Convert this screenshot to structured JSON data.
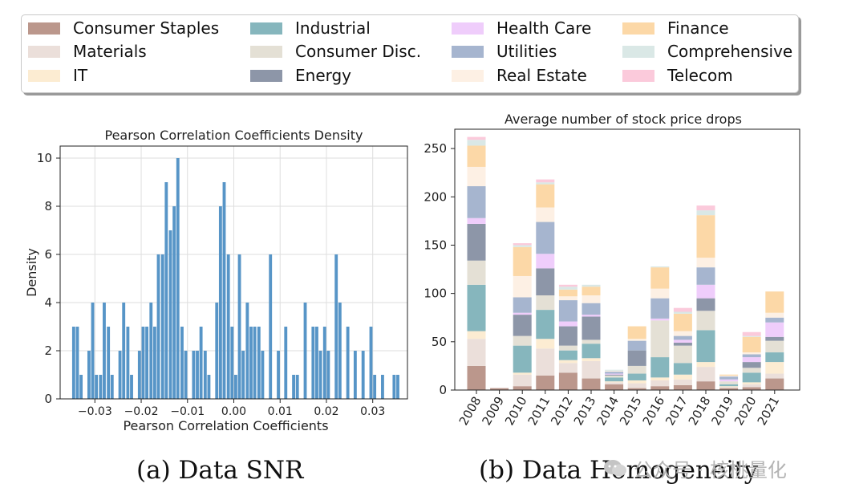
{
  "legend": {
    "items": [
      {
        "label": "Consumer Staples",
        "color": "#bb978c"
      },
      {
        "label": "Materials",
        "color": "#ebdfda"
      },
      {
        "label": "IT",
        "color": "#fcecd2"
      },
      {
        "label": "Industrial",
        "color": "#86b6bd"
      },
      {
        "label": "Consumer Disc.",
        "color": "#e4e0d5"
      },
      {
        "label": "Energy",
        "color": "#8d96a8"
      },
      {
        "label": "Health Care",
        "color": "#efcdfb"
      },
      {
        "label": "Utilities",
        "color": "#a6b5cf"
      },
      {
        "label": "Real Estate",
        "color": "#fdf0e4"
      },
      {
        "label": "Finance",
        "color": "#fcd8a7"
      },
      {
        "label": "Comprehensive",
        "color": "#dae8e6"
      },
      {
        "label": "Telecom",
        "color": "#fbcadb"
      }
    ]
  },
  "chart_data": [
    {
      "type": "bar",
      "title": "Pearson Correlation Coefficients Density",
      "xlabel": "Pearson Correlation Coefficients",
      "ylabel": "Density",
      "xlim": [
        -0.0375,
        0.0375
      ],
      "ylim": [
        0,
        10.5
      ],
      "bin_width": 0.00084,
      "bar_color": "#5795c7",
      "grid": true,
      "x_ticks": [
        -0.03,
        -0.02,
        -0.01,
        0.0,
        0.01,
        0.02,
        0.03
      ],
      "x_tick_labels": [
        "−0.03",
        "−0.02",
        "−0.01",
        "0.00",
        "0.01",
        "0.02",
        "0.03"
      ],
      "y_ticks": [
        0,
        2,
        4,
        6,
        8,
        10
      ],
      "y_tick_labels": [
        "0",
        "2",
        "4",
        "6",
        "8",
        "10"
      ],
      "bins": [
        {
          "x": -0.035,
          "value": 3
        },
        {
          "x": -0.0342,
          "value": 3
        },
        {
          "x": -0.0334,
          "value": 1
        },
        {
          "x": -0.0317,
          "value": 2
        },
        {
          "x": -0.0309,
          "value": 4
        },
        {
          "x": -0.0301,
          "value": 1
        },
        {
          "x": -0.0292,
          "value": 1
        },
        {
          "x": -0.0284,
          "value": 4
        },
        {
          "x": -0.0275,
          "value": 3
        },
        {
          "x": -0.0267,
          "value": 1
        },
        {
          "x": -0.025,
          "value": 2
        },
        {
          "x": -0.0242,
          "value": 4
        },
        {
          "x": -0.0233,
          "value": 3
        },
        {
          "x": -0.0225,
          "value": 1
        },
        {
          "x": -0.0208,
          "value": 2
        },
        {
          "x": -0.02,
          "value": 3
        },
        {
          "x": -0.0192,
          "value": 3
        },
        {
          "x": -0.0183,
          "value": 4
        },
        {
          "x": -0.0175,
          "value": 3
        },
        {
          "x": -0.0167,
          "value": 6
        },
        {
          "x": -0.0158,
          "value": 6
        },
        {
          "x": -0.015,
          "value": 9
        },
        {
          "x": -0.0141,
          "value": 7
        },
        {
          "x": -0.0133,
          "value": 8
        },
        {
          "x": -0.0125,
          "value": 10
        },
        {
          "x": -0.0116,
          "value": 3
        },
        {
          "x": -0.0108,
          "value": 2
        },
        {
          "x": -0.0091,
          "value": 2
        },
        {
          "x": -0.0083,
          "value": 2
        },
        {
          "x": -0.0075,
          "value": 3
        },
        {
          "x": -0.0066,
          "value": 2
        },
        {
          "x": -0.0058,
          "value": 1
        },
        {
          "x": -0.0041,
          "value": 4
        },
        {
          "x": -0.0033,
          "value": 8
        },
        {
          "x": -0.0025,
          "value": 9
        },
        {
          "x": -0.0016,
          "value": 6
        },
        {
          "x": -0.0008,
          "value": 3
        },
        {
          "x": 0.0,
          "value": 1
        },
        {
          "x": 0.0008,
          "value": 6
        },
        {
          "x": 0.0016,
          "value": 2
        },
        {
          "x": 0.0025,
          "value": 4
        },
        {
          "x": 0.0033,
          "value": 3
        },
        {
          "x": 0.0041,
          "value": 3
        },
        {
          "x": 0.005,
          "value": 3
        },
        {
          "x": 0.0058,
          "value": 2
        },
        {
          "x": 0.0075,
          "value": 6
        },
        {
          "x": 0.0092,
          "value": 2
        },
        {
          "x": 0.0108,
          "value": 3
        },
        {
          "x": 0.0125,
          "value": 1
        },
        {
          "x": 0.0133,
          "value": 1
        },
        {
          "x": 0.015,
          "value": 4
        },
        {
          "x": 0.0167,
          "value": 3
        },
        {
          "x": 0.0175,
          "value": 3
        },
        {
          "x": 0.0183,
          "value": 2
        },
        {
          "x": 0.0192,
          "value": 3
        },
        {
          "x": 0.02,
          "value": 2
        },
        {
          "x": 0.0217,
          "value": 6
        },
        {
          "x": 0.0225,
          "value": 4
        },
        {
          "x": 0.0242,
          "value": 3
        },
        {
          "x": 0.0258,
          "value": 2
        },
        {
          "x": 0.0275,
          "value": 2
        },
        {
          "x": 0.0292,
          "value": 3
        },
        {
          "x": 0.03,
          "value": 1
        },
        {
          "x": 0.0317,
          "value": 1
        },
        {
          "x": 0.0342,
          "value": 1
        },
        {
          "x": 0.035,
          "value": 1
        }
      ]
    },
    {
      "type": "bar",
      "stacked": true,
      "title": "Average number of stock price drops",
      "xlabel": "",
      "ylabel": "",
      "categories": [
        "2008",
        "2009",
        "2010",
        "2011",
        "2012",
        "2013",
        "2014",
        "2015",
        "2016",
        "2017",
        "2018",
        "2019",
        "2020",
        "2021"
      ],
      "ylim": [
        0,
        270
      ],
      "y_ticks": [
        0,
        50,
        100,
        150,
        200,
        250
      ],
      "y_tick_labels": [
        "0",
        "50",
        "100",
        "150",
        "200",
        "250"
      ],
      "series": [
        {
          "name": "Consumer Staples",
          "values": [
            25,
            2,
            4,
            15,
            18,
            12,
            6,
            2,
            4,
            5,
            9,
            2,
            3,
            12
          ]
        },
        {
          "name": "Materials",
          "values": [
            28,
            0,
            12,
            28,
            10,
            18,
            2,
            5,
            6,
            6,
            15,
            1,
            3,
            5
          ]
        },
        {
          "name": "IT",
          "values": [
            8,
            0,
            2,
            10,
            3,
            3,
            1,
            3,
            3,
            5,
            5,
            1,
            2,
            12
          ]
        },
        {
          "name": "Industrial",
          "values": [
            48,
            0,
            28,
            30,
            10,
            15,
            4,
            7,
            21,
            12,
            33,
            2,
            10,
            10
          ]
        },
        {
          "name": "Consumer Disc.",
          "values": [
            25,
            0,
            10,
            15,
            5,
            4,
            2,
            8,
            38,
            18,
            20,
            3,
            5,
            12
          ]
        },
        {
          "name": "Energy",
          "values": [
            38,
            0,
            22,
            28,
            20,
            24,
            1,
            16,
            0,
            3,
            13,
            0,
            6,
            4
          ]
        },
        {
          "name": "Health Care",
          "values": [
            6,
            0,
            2,
            15,
            5,
            2,
            1,
            0,
            2,
            3,
            14,
            2,
            5,
            15
          ]
        },
        {
          "name": "Utilities",
          "values": [
            33,
            0,
            16,
            33,
            22,
            12,
            2,
            10,
            21,
            4,
            18,
            3,
            3,
            5
          ]
        },
        {
          "name": "Real Estate",
          "values": [
            20,
            0,
            22,
            15,
            4,
            8,
            1,
            2,
            10,
            5,
            10,
            1,
            2,
            5
          ]
        },
        {
          "name": "Finance",
          "values": [
            22,
            0,
            30,
            24,
            7,
            9,
            0,
            13,
            22,
            18,
            44,
            1,
            16,
            22
          ]
        },
        {
          "name": "Comprehensive",
          "values": [
            6,
            0,
            2,
            2,
            3,
            2,
            1,
            0,
            1,
            2,
            5,
            0,
            1,
            0
          ]
        },
        {
          "name": "Telecom",
          "values": [
            3,
            0,
            2,
            3,
            2,
            0,
            0,
            0,
            0,
            4,
            5,
            0,
            4,
            0
          ]
        }
      ]
    }
  ],
  "captions": {
    "left": "(a) Data SNR",
    "right": "(b) Data Homogeneity"
  },
  "watermark": "公众号 · 核桃量化"
}
